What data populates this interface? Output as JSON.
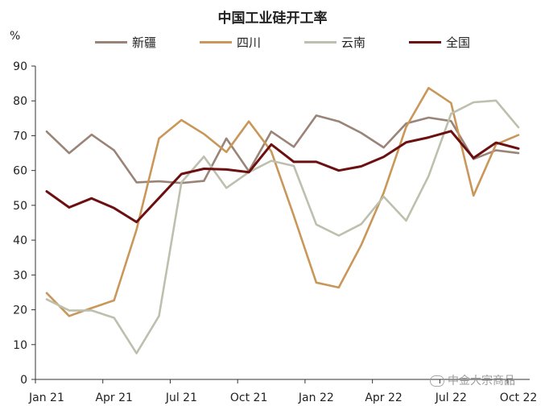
{
  "chart_data": {
    "type": "line",
    "title": "中国工业硅开工率",
    "unit": "%",
    "xlabel": "",
    "ylabel": "",
    "ylim": [
      0,
      90
    ],
    "yticks": [
      0,
      10,
      20,
      30,
      40,
      50,
      60,
      70,
      80,
      90
    ],
    "x": [
      "Jan 21",
      "Feb 21",
      "Mar 21",
      "Apr 21",
      "May 21",
      "Jun 21",
      "Jul 21",
      "Aug 21",
      "Sep 21",
      "Oct 21",
      "Nov 21",
      "Dec 21",
      "Jan 22",
      "Feb 22",
      "Mar 22",
      "Apr 22",
      "May 22",
      "Jun 22",
      "Jul 22",
      "Aug 22",
      "Sep 22",
      "Oct 22"
    ],
    "xtick_labels": [
      "Jan 21",
      "Apr 21",
      "Jul 21",
      "Oct 21",
      "Jan 22",
      "Apr 22",
      "Jul 22",
      "Oct 22"
    ],
    "xtick_indices": [
      0,
      3,
      6,
      9,
      12,
      15,
      18,
      21
    ],
    "legend_position": "top",
    "grid": false,
    "series": [
      {
        "name": "新疆",
        "color": "#9a8478",
        "values": [
          71.2,
          65.0,
          70.3,
          65.8,
          56.6,
          56.9,
          56.4,
          57.0,
          69.2,
          59.8,
          71.2,
          66.8,
          75.8,
          74.1,
          70.8,
          66.6,
          73.5,
          75.2,
          74.2,
          63.3,
          65.8,
          65.0
        ]
      },
      {
        "name": "四川",
        "color": "#c9975a",
        "values": [
          24.8,
          18.2,
          20.5,
          22.7,
          43.0,
          69.2,
          74.5,
          70.5,
          65.3,
          74.1,
          65.5,
          47.0,
          27.8,
          26.4,
          38.6,
          53.6,
          72.5,
          83.7,
          79.4,
          52.8,
          67.5,
          70.2
        ]
      },
      {
        "name": "云南",
        "color": "#bcc0ad",
        "values": [
          23.0,
          19.8,
          19.8,
          17.7,
          7.5,
          18.2,
          56.6,
          64.0,
          55.0,
          59.5,
          62.8,
          61.3,
          44.5,
          41.3,
          44.6,
          52.5,
          45.6,
          58.4,
          76.3,
          79.6,
          80.1,
          72.4
        ]
      },
      {
        "name": "全国",
        "color": "#6b0f10",
        "values": [
          54.0,
          49.4,
          52.0,
          49.2,
          45.2,
          52.1,
          59.0,
          60.5,
          60.3,
          59.5,
          67.5,
          62.5,
          62.5,
          60.0,
          61.2,
          63.9,
          68.1,
          69.5,
          71.3,
          63.6,
          68.0,
          66.3
        ]
      }
    ]
  },
  "watermark": "中金大宗商品"
}
